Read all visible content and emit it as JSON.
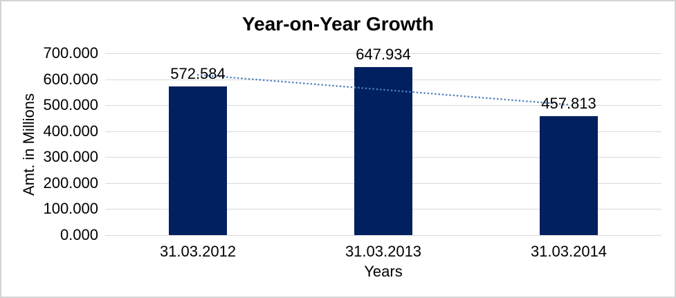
{
  "chart_data": {
    "type": "bar",
    "title": "Year-on-Year Growth",
    "xlabel": "Years",
    "ylabel": "Amt. in Millions",
    "categories": [
      "31.03.2012",
      "31.03.2013",
      "31.03.2014"
    ],
    "values": [
      572.584,
      647.934,
      457.813
    ],
    "data_labels": [
      "572.584",
      "647.934",
      "457.813"
    ],
    "ylim": [
      0,
      700
    ],
    "ytick_step": 100,
    "ytick_labels": [
      "0.000",
      "100.000",
      "200.000",
      "300.000",
      "400.000",
      "500.000",
      "600.000",
      "700.000"
    ],
    "grid": true,
    "legend": false,
    "bar_color": "#002060",
    "gridline_color": "#d9d9d9",
    "trendline": {
      "type": "linear",
      "style": "dotted",
      "color": "#4f81bd",
      "start_value": 616.829,
      "end_value": 502.058
    }
  }
}
